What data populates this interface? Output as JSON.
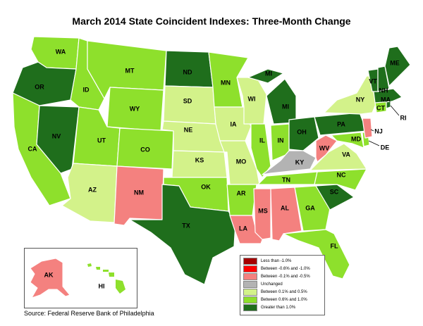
{
  "title": "March 2014 State Coincident Indexes: Three-Month Change",
  "source": "Source: Federal Reserve Bank of Philadelphia",
  "colors": {
    "lt_neg1": "#a50000",
    "neg06_neg1": "#ff0000",
    "neg01_neg05": "#f4817f",
    "unchanged": "#b3b3b3",
    "p01_p05": "#d3f28a",
    "p06_p10": "#8ee02c",
    "gt_p10": "#1f6e1c"
  },
  "legend": [
    {
      "key": "lt_neg1",
      "label": "Less than -1.0%"
    },
    {
      "key": "neg06_neg1",
      "label": "Between -0.6% and -1.0%"
    },
    {
      "key": "neg01_neg05",
      "label": "Between -0.1% and -0.5%"
    },
    {
      "key": "unchanged",
      "label": "Unchanged"
    },
    {
      "key": "p01_p05",
      "label": "Between 0.1% and 0.5%"
    },
    {
      "key": "p06_p10",
      "label": "Between 0.6% and 1.0%"
    },
    {
      "key": "gt_p10",
      "label": "Greater than 1.0%"
    }
  ],
  "states": {
    "WA": "p06_p10",
    "OR": "gt_p10",
    "CA": "p06_p10",
    "NV": "gt_p10",
    "ID": "p06_p10",
    "MT": "p06_p10",
    "WY": "p06_p10",
    "UT": "p06_p10",
    "CO": "p06_p10",
    "AZ": "p01_p05",
    "NM": "neg01_neg05",
    "ND": "gt_p10",
    "SD": "p01_p05",
    "NE": "p01_p05",
    "KS": "p01_p05",
    "OK": "p06_p10",
    "TX": "gt_p10",
    "MN": "p06_p10",
    "IA": "p01_p05",
    "MO": "p01_p05",
    "AR": "p06_p10",
    "LA": "neg01_neg05",
    "WI": "p01_p05",
    "IL": "p06_p10",
    "MI": "gt_p10",
    "IN": "p06_p10",
    "OH": "gt_p10",
    "KY": "unchanged",
    "TN": "p06_p10",
    "MS": "neg01_neg05",
    "AL": "neg01_neg05",
    "GA": "p06_p10",
    "FL": "p06_p10",
    "SC": "gt_p10",
    "NC": "p06_p10",
    "VA": "p01_p05",
    "WV": "neg01_neg05",
    "PA": "gt_p10",
    "NY": "p01_p05",
    "VT": "gt_p10",
    "NH": "gt_p10",
    "ME": "gt_p10",
    "MA": "gt_p10",
    "CT": "p06_p10",
    "RI": "gt_p10",
    "NJ": "neg01_neg05",
    "DE": "p06_p10",
    "MD": "p06_p10",
    "AK": "neg01_neg05",
    "HI": "p06_p10"
  },
  "labels": {
    "WA": "WA",
    "OR": "OR",
    "CA": "CA",
    "NV": "NV",
    "ID": "ID",
    "MT": "MT",
    "WY": "WY",
    "UT": "UT",
    "CO": "CO",
    "AZ": "AZ",
    "NM": "NM",
    "ND": "ND",
    "SD": "SD",
    "NE": "NE",
    "KS": "KS",
    "OK": "OK",
    "TX": "TX",
    "MN": "MN",
    "IA": "IA",
    "MO": "MO",
    "AR": "AR",
    "LA": "LA",
    "WI": "WI",
    "IL": "IL",
    "MI": "MI",
    "IN": "IN",
    "OH": "OH",
    "KY": "KY",
    "TN": "TN",
    "MS": "MS",
    "AL": "AL",
    "GA": "GA",
    "FL": "FL",
    "SC": "SC",
    "NC": "NC",
    "VA": "VA",
    "WV": "WV",
    "PA": "PA",
    "NY": "NY",
    "VT": "VT",
    "NH": "NH",
    "ME": "ME",
    "MA": "MA",
    "CT": "CT",
    "RI": "RI",
    "NJ": "NJ",
    "DE": "DE",
    "MD": "MD",
    "AK": "AK",
    "HI": "HI"
  }
}
